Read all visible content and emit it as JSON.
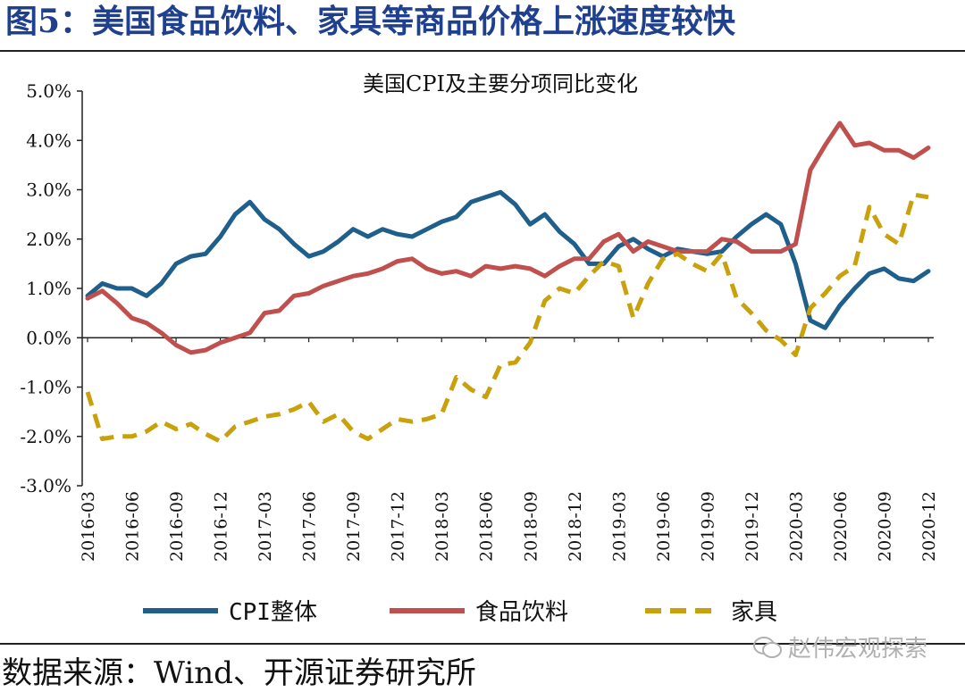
{
  "figure_title": "图5：美国食品饮料、家具等商品价格上涨速度较快",
  "source_note": "数据来源：Wind、开源证券研究所",
  "watermark": "赵伟宏观探索",
  "colors": {
    "cpi": "#1e5f8c",
    "food": "#c0504d",
    "furniture": "#c9a10c",
    "title": "#1f3f8f"
  },
  "chart_data": {
    "type": "line",
    "title": "美国CPI及主要分项同比变化",
    "xlabel": "",
    "ylabel": "",
    "ylim": [
      -3.0,
      5.0
    ],
    "yticks": [
      5.0,
      4.0,
      3.0,
      2.0,
      1.0,
      0.0,
      -1.0,
      -2.0,
      -3.0
    ],
    "ytick_labels": [
      "5.0%",
      "4.0%",
      "3.0%",
      "2.0%",
      "1.0%",
      "0.0%",
      "-1.0%",
      "-2.0%",
      "-3.0%"
    ],
    "x": [
      "2016-03",
      "2016-04",
      "2016-05",
      "2016-06",
      "2016-07",
      "2016-08",
      "2016-09",
      "2016-10",
      "2016-11",
      "2016-12",
      "2017-01",
      "2017-02",
      "2017-03",
      "2017-04",
      "2017-05",
      "2017-06",
      "2017-07",
      "2017-08",
      "2017-09",
      "2017-10",
      "2017-11",
      "2017-12",
      "2018-01",
      "2018-02",
      "2018-03",
      "2018-04",
      "2018-05",
      "2018-06",
      "2018-07",
      "2018-08",
      "2018-09",
      "2018-10",
      "2018-11",
      "2018-12",
      "2019-01",
      "2019-02",
      "2019-03",
      "2019-04",
      "2019-05",
      "2019-06",
      "2019-07",
      "2019-08",
      "2019-09",
      "2019-10",
      "2019-11",
      "2019-12",
      "2020-01",
      "2020-02",
      "2020-03",
      "2020-04",
      "2020-05",
      "2020-06",
      "2020-07",
      "2020-08",
      "2020-09",
      "2020-10",
      "2020-11",
      "2020-12"
    ],
    "xtick_labels": [
      "2016-03",
      "2016-06",
      "2016-09",
      "2016-12",
      "2017-03",
      "2017-06",
      "2017-09",
      "2017-12",
      "2018-03",
      "2018-06",
      "2018-09",
      "2018-12",
      "2019-03",
      "2019-06",
      "2019-09",
      "2019-12",
      "2020-03",
      "2020-06",
      "2020-09",
      "2020-12"
    ],
    "legend_position": "bottom",
    "series": [
      {
        "name": "CPI整体",
        "style": "solid",
        "color": "#1e5f8c",
        "values": [
          0.85,
          1.1,
          1.0,
          1.0,
          0.85,
          1.1,
          1.5,
          1.65,
          1.7,
          2.05,
          2.5,
          2.75,
          2.4,
          2.2,
          1.9,
          1.65,
          1.75,
          1.95,
          2.2,
          2.05,
          2.2,
          2.1,
          2.05,
          2.2,
          2.35,
          2.45,
          2.75,
          2.85,
          2.95,
          2.7,
          2.3,
          2.5,
          2.15,
          1.9,
          1.5,
          1.5,
          1.85,
          2.0,
          1.8,
          1.65,
          1.8,
          1.75,
          1.7,
          1.75,
          2.05,
          2.3,
          2.5,
          2.3,
          1.5,
          0.35,
          0.2,
          0.65,
          1.0,
          1.3,
          1.4,
          1.2,
          1.15,
          1.35
        ]
      },
      {
        "name": "食品饮料",
        "style": "solid",
        "color": "#c0504d",
        "values": [
          0.8,
          0.95,
          0.7,
          0.4,
          0.3,
          0.1,
          -0.15,
          -0.3,
          -0.25,
          -0.1,
          0.0,
          0.1,
          0.5,
          0.55,
          0.85,
          0.9,
          1.05,
          1.15,
          1.25,
          1.3,
          1.4,
          1.55,
          1.6,
          1.4,
          1.3,
          1.35,
          1.25,
          1.45,
          1.4,
          1.45,
          1.4,
          1.25,
          1.45,
          1.6,
          1.6,
          1.95,
          2.1,
          1.75,
          1.95,
          1.85,
          1.75,
          1.75,
          1.75,
          2.0,
          1.95,
          1.75,
          1.75,
          1.75,
          1.9,
          3.4,
          3.9,
          4.35,
          3.9,
          3.95,
          3.8,
          3.8,
          3.65,
          3.85
        ]
      },
      {
        "name": "家具",
        "style": "dashed",
        "color": "#c9a10c",
        "values": [
          -1.1,
          -2.05,
          -2.0,
          -2.0,
          -1.9,
          -1.7,
          -1.85,
          -1.75,
          -1.95,
          -2.1,
          -1.8,
          -1.7,
          -1.6,
          -1.55,
          -1.45,
          -1.3,
          -1.7,
          -1.55,
          -1.9,
          -2.05,
          -1.85,
          -1.65,
          -1.7,
          -1.65,
          -1.55,
          -0.8,
          -1.05,
          -1.2,
          -0.55,
          -0.5,
          -0.1,
          0.75,
          1.0,
          0.9,
          1.25,
          1.55,
          1.45,
          0.4,
          1.1,
          1.6,
          1.7,
          1.5,
          1.35,
          1.7,
          0.8,
          0.5,
          0.15,
          -0.05,
          -0.35,
          0.6,
          0.9,
          1.25,
          1.45,
          2.65,
          2.1,
          1.9,
          2.9,
          2.85
        ]
      }
    ]
  }
}
